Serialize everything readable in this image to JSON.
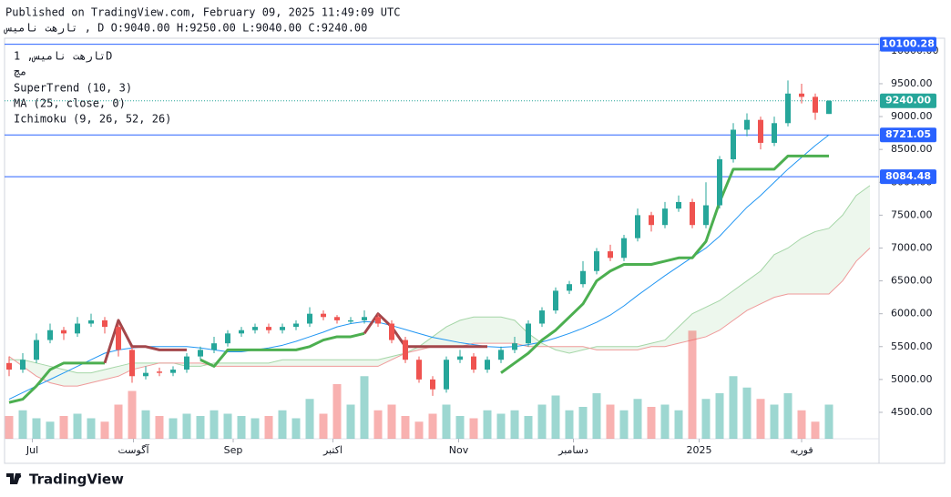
{
  "header": {
    "published": "Published on TradingView.com, February 09, 2025 11:49:09 UTC",
    "ohlc": "تارهت نامیس , D O:9040.00 H:9250.00 L:9040.00 C:9240.00"
  },
  "legend": [
    "تارهت نامیس, 1D",
    "مچ",
    "SuperTrend (10, 3)",
    "MA (25, close, 0)",
    "Ichimoku (9, 26, 52, 26)"
  ],
  "footer": {
    "brand": "TradingView"
  },
  "chart_data": {
    "type": "candlestick",
    "ylim": [
      4098,
      10192
    ],
    "yticks": [
      {
        "value": 4500,
        "label": "4500.00"
      },
      {
        "value": 5000,
        "label": "5000.00"
      },
      {
        "value": 5500,
        "label": "5500.00"
      },
      {
        "value": 6000,
        "label": "6000.00"
      },
      {
        "value": 6500,
        "label": "6500.00"
      },
      {
        "value": 7000,
        "label": "7000.00"
      },
      {
        "value": 7500,
        "label": "7500.00"
      },
      {
        "value": 8000,
        "label": "8000.00"
      },
      {
        "value": 8500,
        "label": "8500.00"
      },
      {
        "value": 9000,
        "label": "9000.00"
      },
      {
        "value": 9500,
        "label": "9500.00"
      },
      {
        "value": 10000,
        "label": "10000.00"
      }
    ],
    "xticks": [
      {
        "value": 1.7,
        "label": "Jul"
      },
      {
        "value": 9.1,
        "label": "آگوست"
      },
      {
        "value": 16.4,
        "label": "Sep"
      },
      {
        "value": 23.7,
        "label": "اکتبر"
      },
      {
        "value": 32.9,
        "label": "Nov"
      },
      {
        "value": 41.3,
        "label": "دسامبر"
      },
      {
        "value": 50.5,
        "label": "2025"
      },
      {
        "value": 58,
        "label": "فوریه"
      }
    ],
    "levels": [
      {
        "value": 10100.28,
        "label": "10100.28"
      },
      {
        "value": 8721.05,
        "label": "8721.05"
      },
      {
        "value": 8084.48,
        "label": "8084.48"
      }
    ],
    "last_price": {
      "value": 9240,
      "label": "9240.00"
    },
    "up_color": "#26a69a",
    "down_color": "#ef5350",
    "open": [
      5250,
      5150,
      5300,
      5600,
      5750,
      5700,
      5850,
      5900,
      5800,
      5450,
      5050,
      5120,
      5100,
      5150,
      5350,
      5450,
      5550,
      5700,
      5750,
      5800,
      5750,
      5800,
      5850,
      6000,
      5950,
      5880,
      5900,
      5950,
      5850,
      5600,
      5300,
      5000,
      4850,
      5300,
      5350,
      5150,
      5300,
      5450,
      5550,
      5850,
      6050,
      6350,
      6450,
      6650,
      6950,
      6850,
      7150,
      7500,
      7350,
      7600,
      7700,
      7350,
      7650,
      8350,
      8800,
      8950,
      8600,
      8900,
      9350,
      9300,
      9040
    ],
    "high": [
      5350,
      5400,
      5700,
      5850,
      5800,
      5950,
      6000,
      5950,
      5850,
      5500,
      5200,
      5180,
      5200,
      5400,
      5500,
      5650,
      5750,
      5800,
      5850,
      5850,
      5850,
      5900,
      6100,
      6050,
      5980,
      5950,
      6050,
      6000,
      5900,
      5650,
      5350,
      5050,
      5350,
      5450,
      5400,
      5350,
      5500,
      5650,
      5900,
      6100,
      6400,
      6500,
      6800,
      7000,
      7050,
      7200,
      7600,
      7550,
      7700,
      7800,
      7750,
      8000,
      8400,
      8900,
      9050,
      9000,
      9000,
      9550,
      9500,
      9350,
      9250
    ],
    "low": [
      5050,
      5100,
      5250,
      5550,
      5600,
      5650,
      5800,
      5700,
      5350,
      4950,
      5000,
      5050,
      5050,
      5100,
      5300,
      5400,
      5500,
      5650,
      5700,
      5700,
      5700,
      5750,
      5800,
      5900,
      5850,
      5850,
      5850,
      5800,
      5550,
      5250,
      4950,
      4750,
      4800,
      5250,
      5100,
      5100,
      5250,
      5400,
      5500,
      5800,
      6000,
      6300,
      6400,
      6600,
      6800,
      6800,
      7100,
      7250,
      7300,
      7550,
      7300,
      7300,
      7600,
      8300,
      8700,
      8500,
      8550,
      8850,
      9200,
      8950,
      9040
    ],
    "close": [
      5150,
      5300,
      5600,
      5750,
      5700,
      5850,
      5900,
      5800,
      5450,
      5050,
      5100,
      5100,
      5150,
      5350,
      5450,
      5550,
      5700,
      5750,
      5800,
      5750,
      5800,
      5850,
      6000,
      5950,
      5900,
      5900,
      5950,
      5850,
      5600,
      5300,
      5000,
      4850,
      5300,
      5350,
      5150,
      5300,
      5450,
      5550,
      5850,
      6050,
      6350,
      6450,
      6650,
      6950,
      6850,
      7150,
      7500,
      7350,
      7600,
      7700,
      7350,
      7650,
      8350,
      8800,
      8950,
      8600,
      8900,
      9350,
      9300,
      9060,
      9240
    ],
    "volume": [
      20,
      25,
      18,
      15,
      20,
      22,
      18,
      15,
      30,
      42,
      25,
      20,
      18,
      22,
      20,
      25,
      22,
      20,
      18,
      20,
      25,
      18,
      35,
      22,
      48,
      30,
      55,
      25,
      30,
      20,
      15,
      22,
      30,
      20,
      18,
      25,
      22,
      25,
      20,
      30,
      38,
      25,
      28,
      40,
      30,
      25,
      35,
      28,
      30,
      25,
      95,
      35,
      40,
      55,
      45,
      35,
      30,
      40,
      25,
      15,
      30
    ],
    "vlim": [
      0,
      100
    ],
    "series": [
      {
        "name": "MA",
        "color": "#2196f3",
        "values": [
          4700,
          4800,
          4900,
          5000,
          5100,
          5200,
          5300,
          5400,
          5450,
          5480,
          5500,
          5500,
          5500,
          5500,
          5480,
          5450,
          5420,
          5420,
          5450,
          5480,
          5520,
          5580,
          5650,
          5720,
          5800,
          5850,
          5880,
          5870,
          5820,
          5760,
          5700,
          5640,
          5600,
          5560,
          5530,
          5500,
          5490,
          5500,
          5530,
          5570,
          5630,
          5700,
          5780,
          5870,
          5980,
          6120,
          6280,
          6430,
          6580,
          6720,
          6860,
          7000,
          7180,
          7400,
          7620,
          7800,
          8000,
          8200,
          8380,
          8560,
          8720
        ]
      },
      {
        "name": "SuperTrend up",
        "color": "#4caf50",
        "values": [
          4650,
          4700,
          4900,
          5150,
          5250,
          5250,
          5250,
          5250,
          null,
          null,
          null,
          null,
          null,
          null,
          5300,
          5200,
          5450,
          5450,
          5450,
          5450,
          5450,
          5450,
          5500,
          5600,
          5650,
          5650,
          5700,
          null,
          null,
          null,
          null,
          null,
          null,
          null,
          null,
          null,
          5100,
          5250,
          5400,
          5600,
          5750,
          5950,
          6150,
          6500,
          6650,
          6750,
          6750,
          6750,
          6800,
          6850,
          6850,
          7100,
          7700,
          8200,
          8200,
          8200,
          8200,
          8400,
          8400,
          8400,
          8400
        ]
      },
      {
        "name": "SuperTrend down",
        "color": "#a3474b",
        "values": [
          null,
          null,
          null,
          null,
          null,
          null,
          null,
          5250,
          5900,
          5500,
          5500,
          5450,
          5450,
          5450,
          null,
          null,
          null,
          null,
          null,
          null,
          null,
          null,
          null,
          null,
          null,
          null,
          5700,
          6000,
          5800,
          5500,
          5500,
          5500,
          5500,
          5500,
          5500,
          5500,
          null,
          null,
          null,
          null,
          null,
          null,
          null,
          null,
          null,
          null,
          null,
          null,
          null,
          null,
          null,
          null,
          null,
          null,
          null,
          null,
          null,
          null,
          null,
          null,
          null
        ]
      }
    ],
    "cloud": {
      "span_a": [
        5300,
        5300,
        5250,
        5200,
        5150,
        5100,
        5100,
        5150,
        5200,
        5250,
        5250,
        5250,
        5250,
        5200,
        5200,
        5250,
        5250,
        5250,
        5250,
        5250,
        5300,
        5300,
        5300,
        5300,
        5300,
        5300,
        5300,
        5300,
        5350,
        5400,
        5500,
        5650,
        5800,
        5900,
        5950,
        5950,
        5950,
        5900,
        5700,
        5550,
        5450,
        5400,
        5450,
        5500,
        5500,
        5500,
        5500,
        5550,
        5600,
        5800,
        6000,
        6100,
        6200,
        6350,
        6500,
        6650,
        6900,
        7000,
        7150,
        7250,
        7300,
        7500,
        7800,
        7950
      ],
      "span_b": [
        5350,
        5200,
        5050,
        4950,
        4900,
        4900,
        4950,
        5000,
        5050,
        5150,
        5200,
        5250,
        5250,
        5250,
        5250,
        5200,
        5200,
        5200,
        5200,
        5200,
        5200,
        5200,
        5200,
        5200,
        5200,
        5200,
        5200,
        5200,
        5300,
        5400,
        5450,
        5500,
        5500,
        5500,
        5550,
        5550,
        5550,
        5550,
        5500,
        5500,
        5500,
        5500,
        5500,
        5450,
        5450,
        5450,
        5450,
        5500,
        5500,
        5550,
        5600,
        5650,
        5750,
        5900,
        6050,
        6150,
        6250,
        6300,
        6300,
        6300,
        6300,
        6500,
        6800,
        7000
      ]
    }
  }
}
